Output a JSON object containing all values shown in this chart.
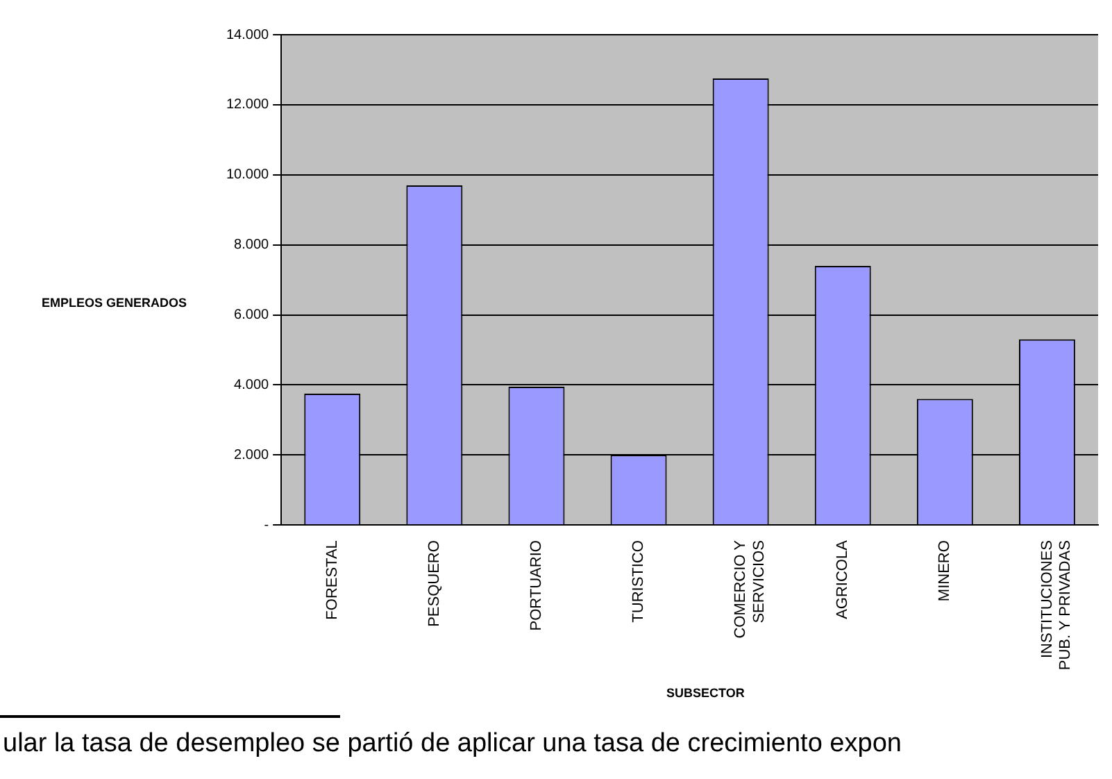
{
  "chart_data": {
    "type": "bar",
    "xlabel": "SUBSECTOR",
    "ylabel": "EMPLEOS GENERADOS",
    "categories": [
      "FORESTAL",
      "PESQUERO",
      "PORTUARIO",
      "TURISTICO",
      "COMERCIO Y SERVICIOS",
      "AGRICOLA",
      "MINERO",
      "INSTITUCIONES PUB. Y PRIVADAS"
    ],
    "values": [
      3750,
      9700,
      3950,
      2000,
      12750,
      7400,
      3600,
      5300
    ],
    "color": "#9999ff",
    "ylim": [
      0,
      14000
    ],
    "yticks": [
      {
        "value": 0,
        "label": "-"
      },
      {
        "value": 2000,
        "label": "2.000"
      },
      {
        "value": 4000,
        "label": "4.000"
      },
      {
        "value": 6000,
        "label": "6.000"
      },
      {
        "value": 8000,
        "label": "8.000"
      },
      {
        "value": 10000,
        "label": "10.000"
      },
      {
        "value": 12000,
        "label": "12.000"
      },
      {
        "value": 14000,
        "label": "14.000"
      }
    ],
    "grid": "y",
    "legend": false,
    "annotations": [
      "ular la tasa de desempleo se partió de aplicar una tasa de crecimiento expon"
    ]
  }
}
